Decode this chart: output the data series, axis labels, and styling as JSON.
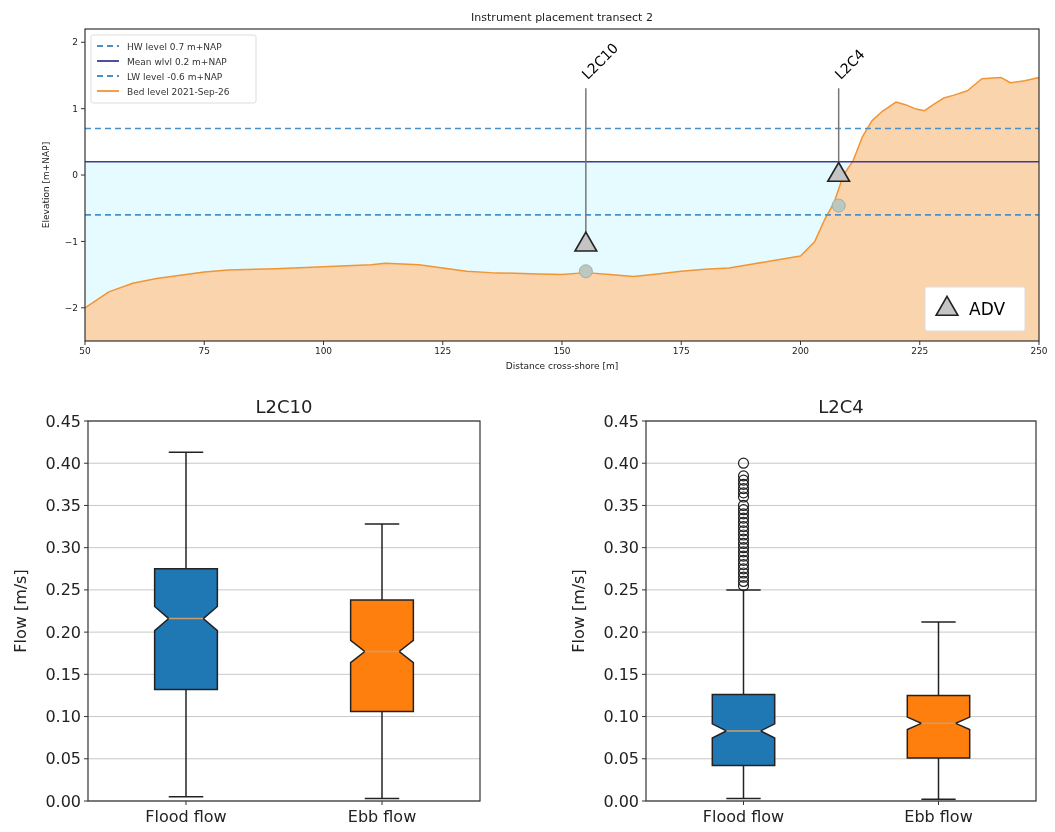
{
  "chart_data": [
    {
      "type": "line",
      "title": "Instrument placement transect 2",
      "xlabel": "Distance cross-shore [m]",
      "ylabel": "Elevation [m+NAP]",
      "xlim": [
        50,
        250
      ],
      "xticks": [
        50,
        75,
        100,
        125,
        150,
        175,
        200,
        225,
        250
      ],
      "ylim": [
        -2.5,
        2.2
      ],
      "yticks": [
        {
          "value": -2,
          "label": "−2"
        },
        {
          "value": -1,
          "label": "−1"
        },
        0,
        1,
        2
      ],
      "legend": "top left",
      "bands": [
        {
          "axis": "y",
          "from": -2.5,
          "to": 0.2,
          "color": "#e6fbff"
        }
      ],
      "ref_lines": [
        {
          "axis": "y",
          "value": 0.7,
          "label": "HW level 0.7 m+NAP",
          "color": "#4a90c8",
          "line_style": "dashed"
        },
        {
          "axis": "y",
          "value": 0.2,
          "label": "Mean wlvl 0.2 m+NAP",
          "color": "#3b3b9a",
          "line_style": "solid"
        },
        {
          "axis": "y",
          "value": -0.6,
          "label": "LW level -0.6 m+NAP",
          "color": "#4a90c8",
          "line_style": "dashed"
        }
      ],
      "series": [
        {
          "name": "Bed level 2021-Sep-26",
          "color": "#f39433",
          "x": [
            50,
            55,
            60,
            65,
            70,
            75,
            80,
            90,
            100,
            110,
            113,
            120,
            125,
            130,
            135,
            140,
            145,
            150,
            155,
            160,
            165,
            170,
            175,
            180,
            185,
            190,
            195,
            200,
            203,
            205,
            207,
            209,
            211,
            213,
            215,
            217,
            220,
            222,
            224,
            226,
            228,
            230,
            232,
            235,
            238,
            242,
            244,
            247,
            250
          ],
          "values": [
            -2.0,
            -1.76,
            -1.63,
            -1.56,
            -1.51,
            -1.46,
            -1.43,
            -1.41,
            -1.38,
            -1.35,
            -1.33,
            -1.35,
            -1.4,
            -1.45,
            -1.47,
            -1.48,
            -1.49,
            -1.5,
            -1.47,
            -1.5,
            -1.53,
            -1.49,
            -1.45,
            -1.42,
            -1.4,
            -1.34,
            -1.28,
            -1.22,
            -1.0,
            -0.68,
            -0.42,
            0.0,
            0.21,
            0.58,
            0.82,
            0.95,
            1.1,
            1.06,
            1.0,
            0.97,
            1.07,
            1.16,
            1.2,
            1.27,
            1.45,
            1.47,
            1.39,
            1.42,
            1.47
          ],
          "lower": [
            -2.5,
            -2.5,
            -2.5,
            -2.5,
            -2.5,
            -2.5,
            -2.5,
            -2.5,
            -2.5,
            -2.5,
            -2.5,
            -2.5,
            -2.5,
            -2.5,
            -2.5,
            -2.5,
            -2.5,
            -2.5,
            -2.5,
            -2.5,
            -2.5,
            -2.5,
            -2.5,
            -2.5,
            -2.5,
            -2.5,
            -2.5,
            -2.5,
            -2.5,
            -2.5,
            -2.5,
            -2.5,
            -2.5,
            -2.5,
            -2.5,
            -2.5,
            -2.5,
            -2.5,
            -2.5,
            -2.5,
            -2.5,
            -2.5,
            -2.5,
            -2.5,
            -2.5,
            -2.5,
            -2.5,
            -2.5,
            -2.5
          ],
          "upper": [
            -2.0,
            -1.76,
            -1.63,
            -1.56,
            -1.51,
            -1.46,
            -1.43,
            -1.41,
            -1.38,
            -1.35,
            -1.33,
            -1.35,
            -1.4,
            -1.45,
            -1.47,
            -1.48,
            -1.49,
            -1.5,
            -1.47,
            -1.5,
            -1.53,
            -1.49,
            -1.45,
            -1.42,
            -1.4,
            -1.34,
            -1.28,
            -1.22,
            -1.0,
            -0.68,
            -0.42,
            0.0,
            0.21,
            0.58,
            0.82,
            0.95,
            1.1,
            1.06,
            1.0,
            0.97,
            1.07,
            1.16,
            1.2,
            1.27,
            1.45,
            1.47,
            1.39,
            1.42,
            1.47
          ]
        },
        {
          "name": "ADV",
          "type": "scatter",
          "marker": "triangle",
          "color": "#c4c4c4",
          "x": [
            155,
            208
          ],
          "values": [
            -1.05,
            0.0
          ]
        },
        {
          "type": "scatter",
          "marker": "circle",
          "color": "#bcc8bf",
          "x": [
            155,
            208
          ],
          "values": [
            -1.45,
            -0.46
          ]
        }
      ],
      "annotations": [
        {
          "text": "L2C10",
          "x": 155,
          "y": -1.05
        },
        {
          "text": "L2C4",
          "x": 208,
          "y": 0.0
        }
      ]
    },
    {
      "type": "box",
      "title": "L2C10",
      "ylabel": "Flow [m/s]",
      "categories": [
        "Flood flow",
        "Ebb flow"
      ],
      "colors": [
        "#1f77b4",
        "#ff7f0e"
      ],
      "ylim": [
        0,
        0.45
      ],
      "yticks": [
        {
          "value": 0,
          "label": "0.00"
        },
        {
          "value": 0.05,
          "label": "0.05"
        },
        {
          "value": 0.1,
          "label": "0.10"
        },
        {
          "value": 0.15,
          "label": "0.15"
        },
        {
          "value": 0.2,
          "label": "0.20"
        },
        {
          "value": 0.25,
          "label": "0.25"
        },
        {
          "value": 0.3,
          "label": "0.30"
        },
        {
          "value": 0.35,
          "label": "0.35"
        },
        {
          "value": 0.4,
          "label": "0.40"
        },
        {
          "value": 0.45,
          "label": "0.45"
        }
      ],
      "grid": "y",
      "boxes": [
        {
          "low": 0.005,
          "q1": 0.132,
          "median": 0.216,
          "q3": 0.275,
          "high": 0.413
        },
        {
          "low": 0.003,
          "q1": 0.106,
          "median": 0.177,
          "q3": 0.238,
          "high": 0.328
        }
      ]
    },
    {
      "type": "box",
      "title": "L2C4",
      "ylabel": "Flow [m/s]",
      "categories": [
        "Flood flow",
        "Ebb flow"
      ],
      "colors": [
        "#1f77b4",
        "#ff7f0e"
      ],
      "ylim": [
        0,
        0.45
      ],
      "yticks": [
        {
          "value": 0,
          "label": "0.00"
        },
        {
          "value": 0.05,
          "label": "0.05"
        },
        {
          "value": 0.1,
          "label": "0.10"
        },
        {
          "value": 0.15,
          "label": "0.15"
        },
        {
          "value": 0.2,
          "label": "0.20"
        },
        {
          "value": 0.25,
          "label": "0.25"
        },
        {
          "value": 0.3,
          "label": "0.30"
        },
        {
          "value": 0.35,
          "label": "0.35"
        },
        {
          "value": 0.4,
          "label": "0.40"
        },
        {
          "value": 0.45,
          "label": "0.45"
        }
      ],
      "grid": "y",
      "boxes": [
        {
          "low": 0.003,
          "q1": 0.042,
          "median": 0.083,
          "q3": 0.126,
          "high": 0.25,
          "outliers": [
            0.255,
            0.26,
            0.265,
            0.27,
            0.275,
            0.28,
            0.285,
            0.29,
            0.295,
            0.3,
            0.305,
            0.31,
            0.315,
            0.32,
            0.325,
            0.33,
            0.335,
            0.34,
            0.345,
            0.35,
            0.36,
            0.365,
            0.37,
            0.375,
            0.38,
            0.385,
            0.4
          ]
        },
        {
          "low": 0.002,
          "q1": 0.051,
          "median": 0.092,
          "q3": 0.125,
          "high": 0.212
        }
      ]
    }
  ]
}
